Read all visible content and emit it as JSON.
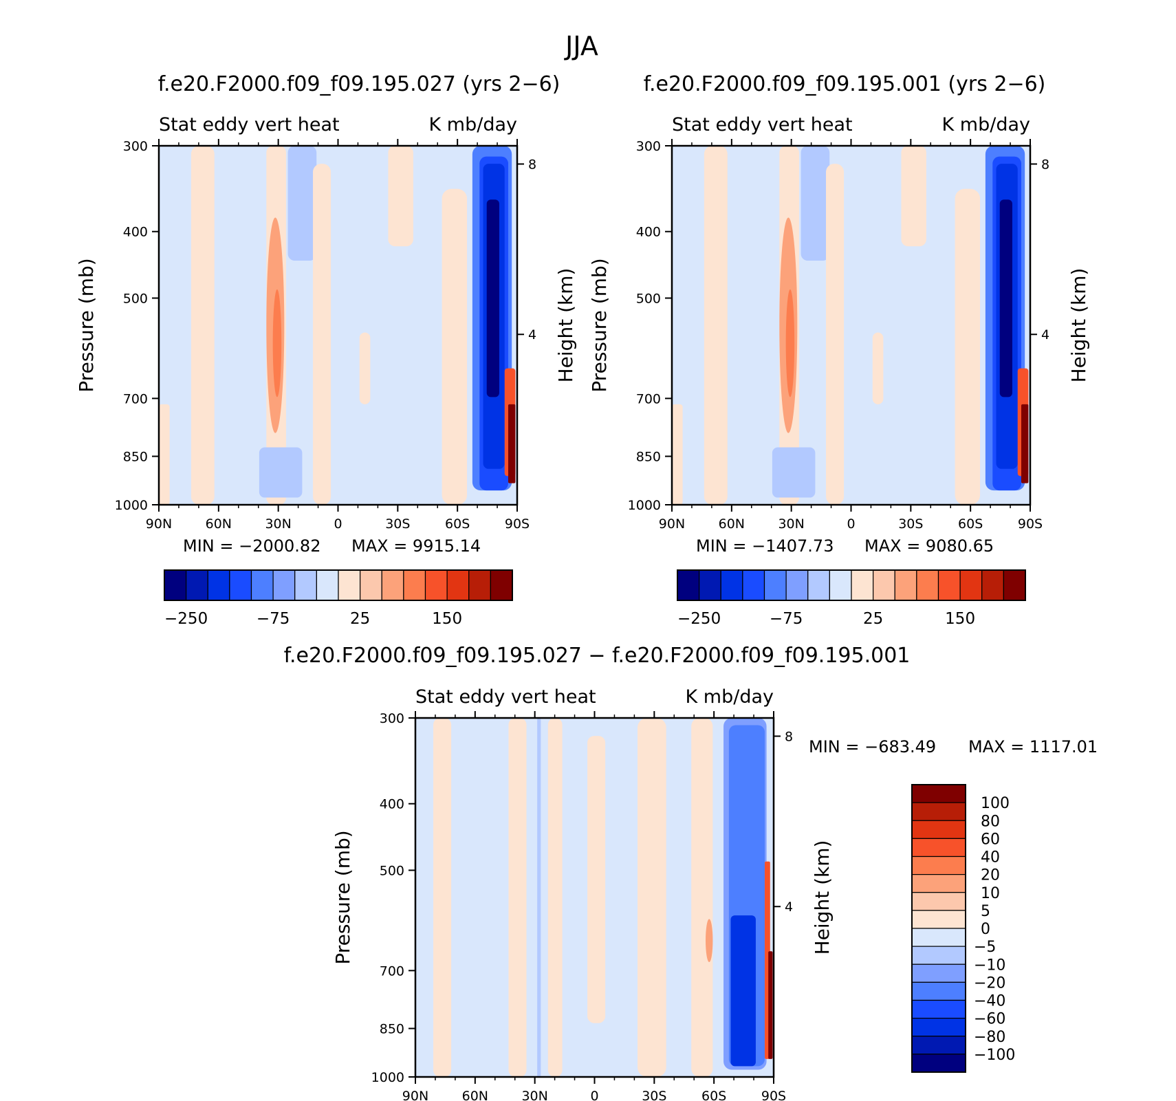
{
  "figure_title": "JJA",
  "palettes": {
    "blue_red_16": [
      "#00007f",
      "#0019b2",
      "#0033e5",
      "#1a4cff",
      "#4d7fff",
      "#7f9fff",
      "#b2c9ff",
      "#d9e7fc",
      "#fde4d2",
      "#fcc8ad",
      "#fca27a",
      "#fc7d4e",
      "#f7522a",
      "#e23512",
      "#b71e07",
      "#7f0000"
    ]
  },
  "chart_data": [
    {
      "type": "heatmap",
      "title": "f.e20.F2000.f09_f09.195.027 (yrs 2−6)",
      "left_string": "Stat eddy vert heat",
      "right_string": "K mb/day",
      "ylabel": "Pressure (mb)",
      "ylabel_right": "Height (km)",
      "x_ticks": [
        "90N",
        "60N",
        "30N",
        "0",
        "30S",
        "60S",
        "90S"
      ],
      "y_ticks": [
        "300",
        "400",
        "500",
        "700",
        "850",
        "1000"
      ],
      "y_ticks_right": [
        "8",
        "4"
      ],
      "min_text": "MIN = −2000.82",
      "max_text": "MAX = 9915.14",
      "colorbar_labels": [
        "−250",
        "−75",
        "25",
        "150"
      ],
      "colorbar_orientation": "horizontal"
    },
    {
      "type": "heatmap",
      "title": "f.e20.F2000.f09_f09.195.001 (yrs 2−6)",
      "left_string": "Stat eddy vert heat",
      "right_string": "K mb/day",
      "ylabel": "Pressure (mb)",
      "ylabel_right": "Height (km)",
      "x_ticks": [
        "90N",
        "60N",
        "30N",
        "0",
        "30S",
        "60S",
        "90S"
      ],
      "y_ticks": [
        "300",
        "400",
        "500",
        "700",
        "850",
        "1000"
      ],
      "y_ticks_right": [
        "8",
        "4"
      ],
      "min_text": "MIN = −1407.73",
      "max_text": "MAX = 9080.65",
      "colorbar_labels": [
        "−250",
        "−75",
        "25",
        "150"
      ],
      "colorbar_orientation": "horizontal"
    },
    {
      "type": "heatmap",
      "title": "f.e20.F2000.f09_f09.195.027 − f.e20.F2000.f09_f09.195.001",
      "left_string": "Stat eddy vert heat",
      "right_string": "K mb/day",
      "ylabel": "Pressure (mb)",
      "ylabel_right": "Height (km)",
      "x_ticks": [
        "90N",
        "60N",
        "30N",
        "0",
        "30S",
        "60S",
        "90S"
      ],
      "y_ticks": [
        "300",
        "400",
        "500",
        "700",
        "850",
        "1000"
      ],
      "y_ticks_right": [
        "8",
        "4"
      ],
      "min_text": "MIN = −683.49",
      "max_text": "MAX = 1117.01",
      "colorbar_labels": [
        "100",
        "80",
        "60",
        "40",
        "20",
        "10",
        "5",
        "0",
        "−5",
        "−10",
        "−20",
        "−40",
        "−60",
        "−80",
        "−100"
      ],
      "colorbar_orientation": "vertical"
    }
  ]
}
